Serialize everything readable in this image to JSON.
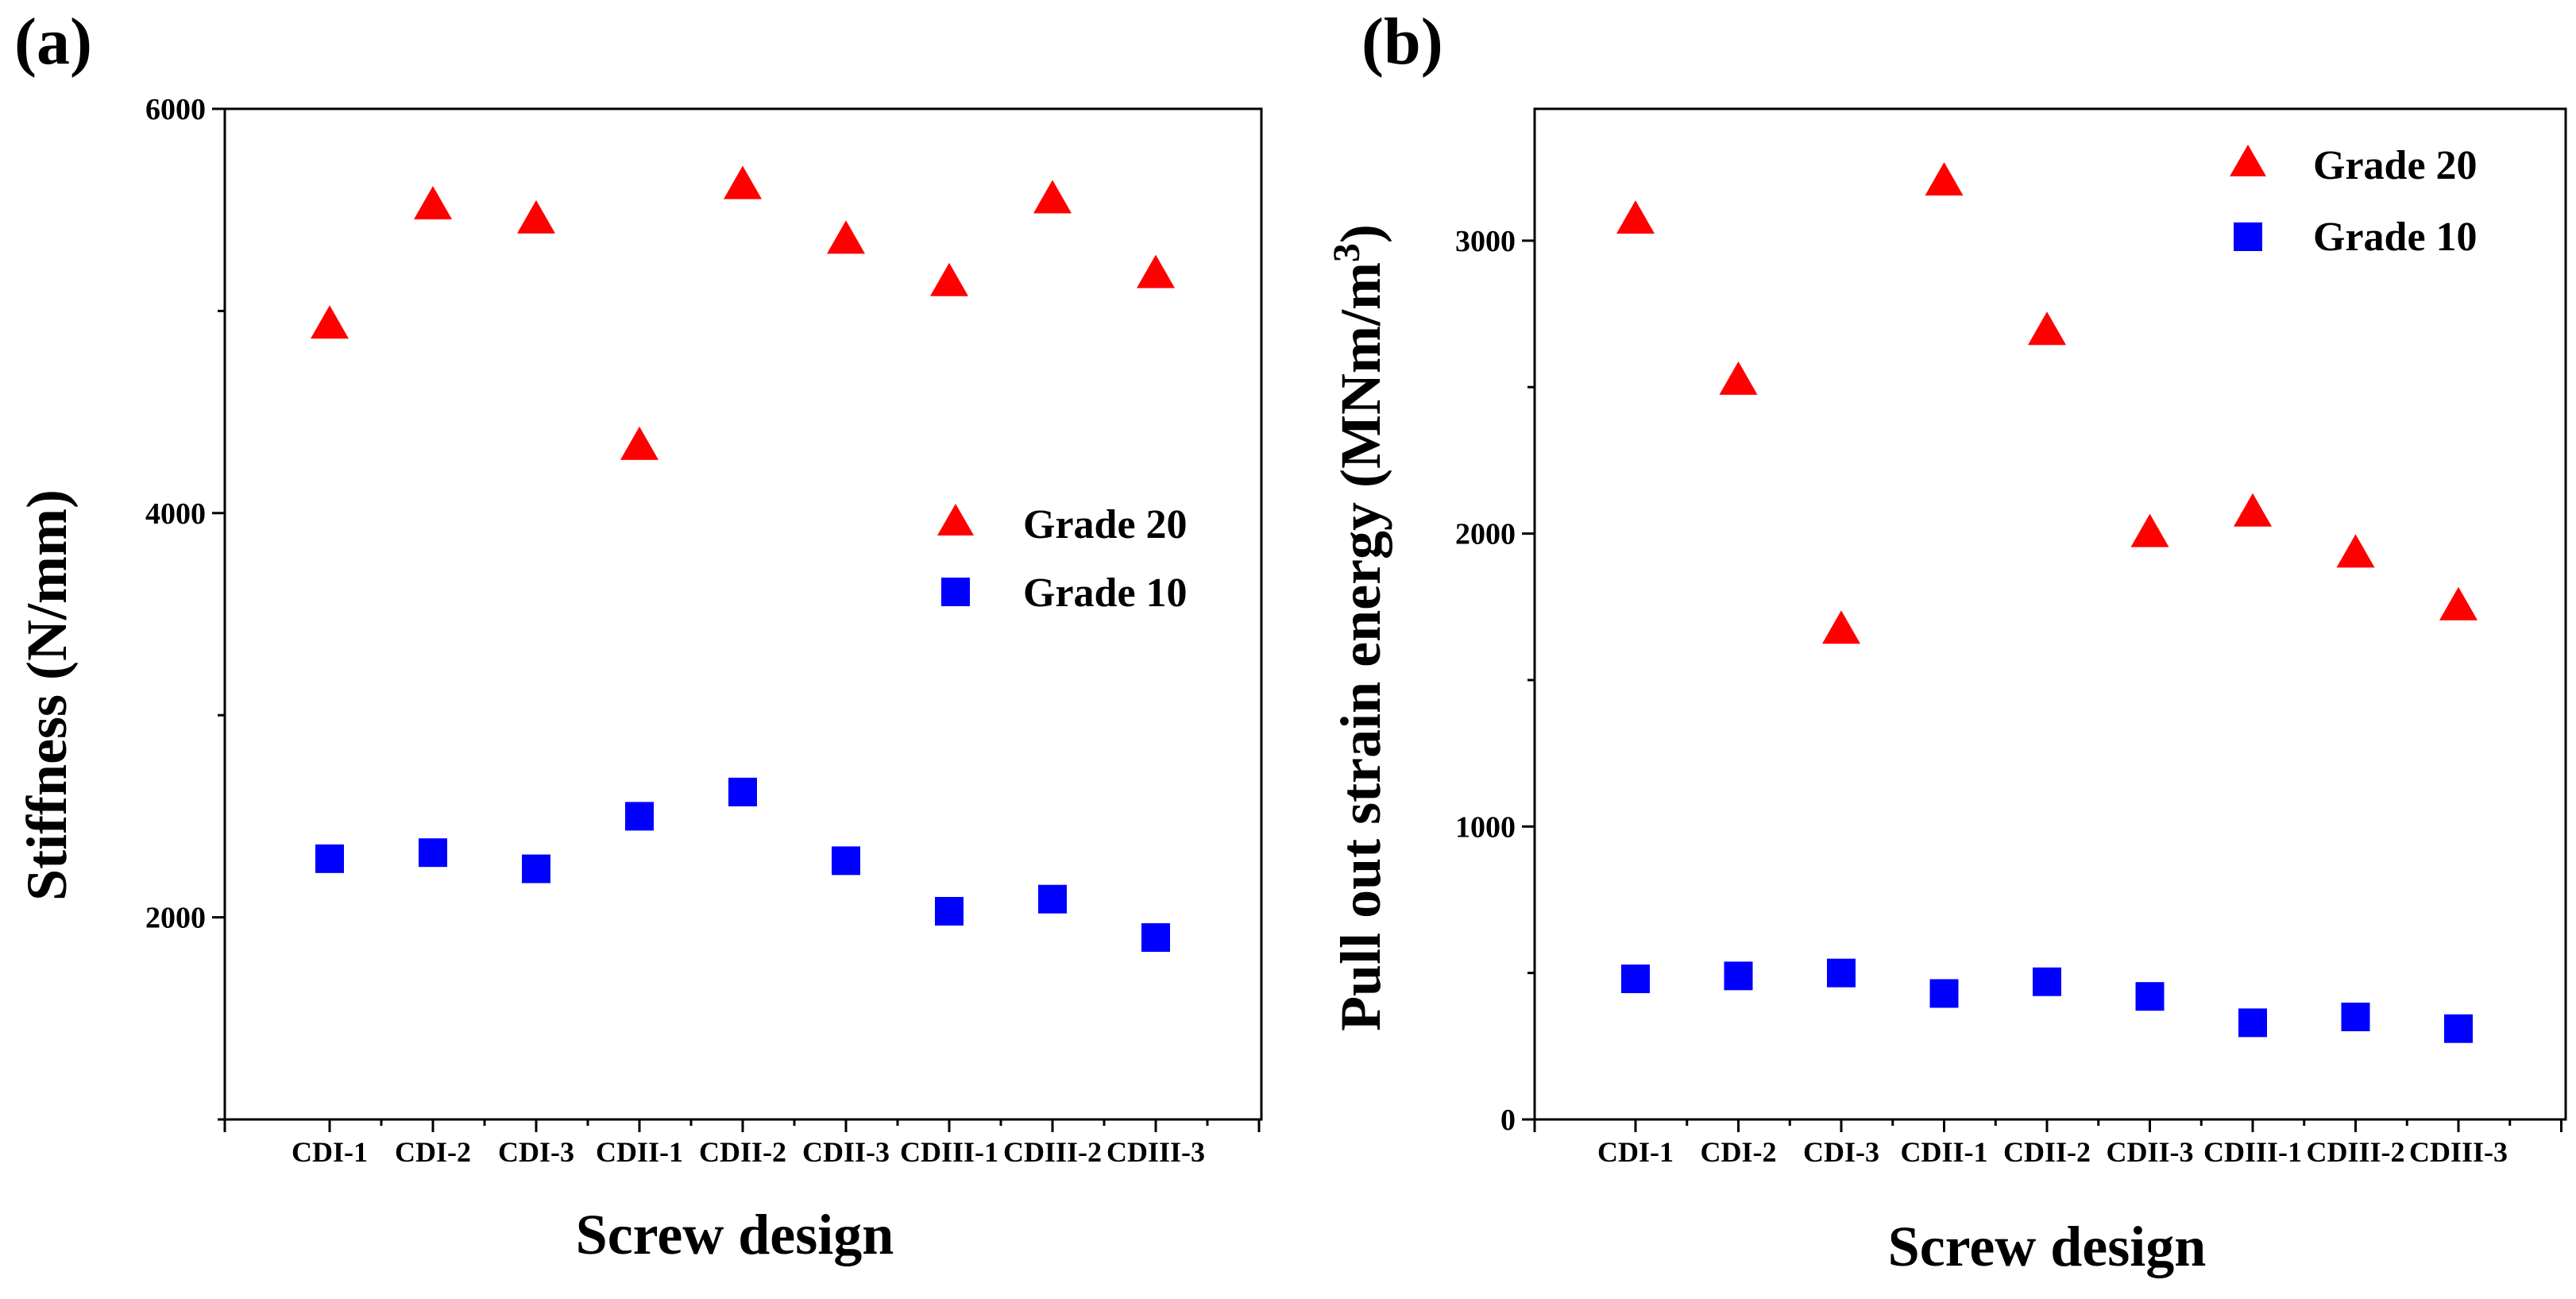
{
  "chart_data": [
    {
      "panel_label": "(a)",
      "type": "scatter",
      "categories": [
        "CDI-1",
        "CDI-2",
        "CDI-3",
        "CDII-1",
        "CDII-2",
        "CDII-3",
        "CDIII-1",
        "CDIII-2",
        "CDIII-3"
      ],
      "series": [
        {
          "name": "Grade 20",
          "marker": "triangle",
          "color": "#ff0000",
          "values": [
            4930,
            5520,
            5450,
            4330,
            5620,
            5350,
            5140,
            5550,
            5180
          ]
        },
        {
          "name": "Grade 10",
          "marker": "square",
          "color": "#0000ff",
          "values": [
            2290,
            2320,
            2240,
            2500,
            2620,
            2280,
            2030,
            2090,
            1900
          ]
        }
      ],
      "xlabel": "Screw design",
      "ylabel": "Stiffness (N/mm)",
      "ylim": [
        1000,
        6000
      ],
      "yticks_labeled": [
        2000,
        4000,
        6000
      ],
      "yticks_minor": [
        1000,
        3000,
        5000
      ],
      "legend_position": "center-right",
      "grid": false
    },
    {
      "panel_label": "(b)",
      "type": "scatter",
      "categories": [
        "CDI-1",
        "CDI-2",
        "CDI-3",
        "CDII-1",
        "CDII-2",
        "CDII-3",
        "CDIII-1",
        "CDIII-2",
        "CDIII-3"
      ],
      "series": [
        {
          "name": "Grade 20",
          "marker": "triangle",
          "color": "#ff0000",
          "values": [
            3070,
            2520,
            1670,
            3200,
            2690,
            2000,
            2070,
            1930,
            1750
          ]
        },
        {
          "name": "Grade 10",
          "marker": "square",
          "color": "#0000ff",
          "values": [
            480,
            490,
            500,
            430,
            470,
            420,
            330,
            350,
            310
          ]
        }
      ],
      "xlabel": "Screw design",
      "ylabel": "Pull out strain energy (MNm/m",
      "ylabel_superscript": "3",
      "ylabel_suffix": ")",
      "ylim": [
        0,
        3450
      ],
      "yticks_labeled": [
        0,
        1000,
        2000,
        3000
      ],
      "yticks_minor": [
        500,
        1500,
        2500
      ],
      "legend_position": "top-right",
      "grid": false
    }
  ]
}
